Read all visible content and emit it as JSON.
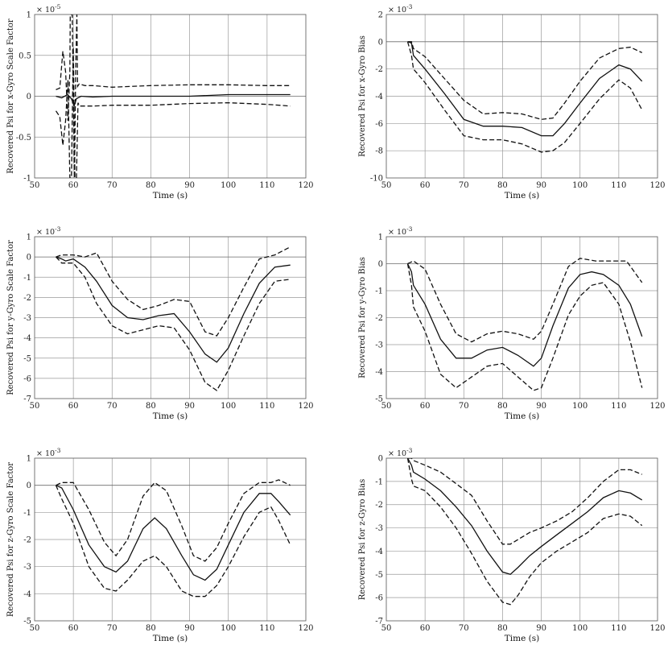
{
  "chart_data": [
    {
      "type": "line",
      "ylabel": "Recovered Psi for x-Gyro Scale Factor",
      "xlabel": "Time (s)",
      "multiplier": "× 10",
      "multiplier_exp": "-5",
      "xlim": [
        50,
        120
      ],
      "ylim": [
        -1,
        1
      ],
      "xticks": [
        "50",
        "60",
        "70",
        "80",
        "90",
        "100",
        "110",
        "120"
      ],
      "yticks": [
        "-1",
        "-0.5",
        "0",
        "0.5",
        "1"
      ],
      "ytick_values": [
        -1,
        -0.5,
        0,
        0.5,
        1
      ],
      "grid": true,
      "series": [
        {
          "style": "solid",
          "x": [
            55.5,
            57,
            58.5,
            59.5,
            60.2,
            60.8,
            62,
            65,
            70,
            80,
            90,
            100,
            110,
            116
          ],
          "y": [
            0.0,
            -0.02,
            0.02,
            -0.03,
            -0.12,
            -0.03,
            0.0,
            -0.01,
            0.0,
            0.0,
            0.0,
            0.02,
            0.02,
            0.02
          ]
        },
        {
          "style": "dashed",
          "x": [
            55.5,
            56.5,
            57.3,
            58,
            58.6,
            59.1,
            59.2,
            59.7,
            60.3,
            60.6,
            60.9,
            61.1,
            61.5,
            63,
            65,
            70,
            80,
            90,
            100,
            110,
            116
          ],
          "y": [
            0.08,
            0.1,
            0.55,
            0.3,
            -0.3,
            0.3,
            1.0,
            1.0,
            -1.0,
            0.3,
            1.0,
            0.12,
            0.15,
            0.13,
            0.13,
            0.11,
            0.13,
            0.14,
            0.14,
            0.13,
            0.13
          ]
        },
        {
          "style": "dashed",
          "x": [
            55.5,
            56.5,
            57.3,
            58,
            58.6,
            59.1,
            59.5,
            60,
            60.4,
            60.8,
            61.2,
            61.6,
            63,
            65,
            70,
            80,
            90,
            100,
            110,
            116
          ],
          "y": [
            -0.18,
            -0.25,
            -0.6,
            -0.3,
            0.2,
            -1.0,
            -1.0,
            0.6,
            -1.0,
            -1.0,
            -0.08,
            -0.12,
            -0.12,
            -0.12,
            -0.11,
            -0.11,
            -0.09,
            -0.08,
            -0.1,
            -0.12
          ]
        }
      ]
    },
    {
      "type": "line",
      "ylabel": "Recovered Psi for x-Gyro Bias",
      "xlabel": "Time (s)",
      "multiplier": "× 10",
      "multiplier_exp": "-3",
      "xlim": [
        50,
        120
      ],
      "ylim": [
        -10,
        2
      ],
      "xticks": [
        "50",
        "60",
        "70",
        "80",
        "90",
        "100",
        "110",
        "120"
      ],
      "yticks": [
        "-10",
        "-8",
        "-6",
        "-4",
        "-2",
        "0",
        "2"
      ],
      "ytick_values": [
        -10,
        -8,
        -6,
        -4,
        -2,
        0,
        2
      ],
      "grid": true,
      "series": [
        {
          "style": "solid",
          "x": [
            55.5,
            56.5,
            57,
            60,
            65,
            70,
            75,
            80,
            85,
            90,
            93,
            96,
            100,
            105,
            110,
            113,
            116
          ],
          "y": [
            0.0,
            -0.1,
            -1.0,
            -2.0,
            -3.8,
            -5.7,
            -6.2,
            -6.2,
            -6.3,
            -6.9,
            -6.9,
            -6.0,
            -4.5,
            -2.7,
            -1.7,
            -2.0,
            -2.9
          ]
        },
        {
          "style": "dashed",
          "x": [
            55.5,
            56.5,
            57,
            60,
            65,
            70,
            75,
            80,
            85,
            90,
            93,
            96,
            100,
            105,
            110,
            113,
            116
          ],
          "y": [
            0.0,
            0.0,
            -0.5,
            -1.1,
            -2.7,
            -4.3,
            -5.3,
            -5.2,
            -5.3,
            -5.7,
            -5.6,
            -4.5,
            -2.9,
            -1.2,
            -0.5,
            -0.4,
            -0.8
          ]
        },
        {
          "style": "dashed",
          "x": [
            55.5,
            56.5,
            57,
            60,
            65,
            70,
            75,
            80,
            85,
            90,
            93,
            96,
            100,
            105,
            110,
            113,
            116
          ],
          "y": [
            0.0,
            -1.0,
            -2.0,
            -3.0,
            -5.0,
            -6.9,
            -7.2,
            -7.2,
            -7.5,
            -8.1,
            -8.0,
            -7.4,
            -6.0,
            -4.2,
            -2.8,
            -3.4,
            -5.0
          ]
        }
      ]
    },
    {
      "type": "line",
      "ylabel": "Recovered Psi for y-Gyro Scale Factor",
      "xlabel": "Time (s)",
      "multiplier": "× 10",
      "multiplier_exp": "-3",
      "xlim": [
        50,
        120
      ],
      "ylim": [
        -7,
        1
      ],
      "xticks": [
        "50",
        "60",
        "70",
        "80",
        "90",
        "100",
        "110",
        "120"
      ],
      "yticks": [
        "-7",
        "-6",
        "-5",
        "-4",
        "-3",
        "-2",
        "-1",
        "0",
        "1"
      ],
      "ytick_values": [
        -7,
        -6,
        -5,
        -4,
        -3,
        -2,
        -1,
        0,
        1
      ],
      "grid": true,
      "series": [
        {
          "style": "solid",
          "x": [
            55.5,
            57,
            58,
            60,
            63,
            66,
            70,
            74,
            78,
            82,
            86,
            90,
            94,
            97,
            100,
            104,
            108,
            112,
            116
          ],
          "y": [
            0.0,
            -0.1,
            -0.2,
            -0.1,
            -0.5,
            -1.2,
            -2.4,
            -3.0,
            -3.1,
            -2.9,
            -2.8,
            -3.7,
            -4.8,
            -5.2,
            -4.5,
            -2.8,
            -1.3,
            -0.5,
            -0.4
          ]
        },
        {
          "style": "dashed",
          "x": [
            55.5,
            57,
            60,
            63,
            66,
            70,
            74,
            78,
            82,
            86,
            90,
            94,
            97,
            100,
            104,
            108,
            112,
            116
          ],
          "y": [
            0.0,
            0.1,
            0.1,
            0.0,
            0.2,
            -1.2,
            -2.1,
            -2.6,
            -2.4,
            -2.1,
            -2.2,
            -3.7,
            -3.9,
            -3.0,
            -1.5,
            -0.1,
            0.1,
            0.5
          ]
        },
        {
          "style": "dashed",
          "x": [
            55.5,
            57,
            60,
            63,
            66,
            70,
            74,
            78,
            82,
            86,
            90,
            94,
            97,
            100,
            104,
            108,
            112,
            116
          ],
          "y": [
            0.0,
            -0.3,
            -0.3,
            -1.0,
            -2.3,
            -3.4,
            -3.8,
            -3.6,
            -3.4,
            -3.5,
            -4.6,
            -6.2,
            -6.6,
            -5.6,
            -3.9,
            -2.3,
            -1.2,
            -1.1
          ]
        }
      ]
    },
    {
      "type": "line",
      "ylabel": "Recovered Psi for y-Gyro Bias",
      "xlabel": "Time (s)",
      "multiplier": "× 10",
      "multiplier_exp": "-3",
      "xlim": [
        50,
        120
      ],
      "ylim": [
        -5,
        1
      ],
      "xticks": [
        "50",
        "60",
        "70",
        "80",
        "90",
        "100",
        "110",
        "120"
      ],
      "yticks": [
        "-5",
        "-4",
        "-3",
        "-2",
        "-1",
        "0",
        "1"
      ],
      "ytick_values": [
        -5,
        -4,
        -3,
        -2,
        -1,
        0,
        1
      ],
      "grid": true,
      "series": [
        {
          "style": "solid",
          "x": [
            55.5,
            56.5,
            57,
            60,
            64,
            68,
            72,
            76,
            80,
            84,
            88,
            90,
            93,
            97,
            100,
            103,
            106,
            110,
            113,
            116
          ],
          "y": [
            0.0,
            -0.3,
            -0.8,
            -1.5,
            -2.8,
            -3.5,
            -3.5,
            -3.2,
            -3.1,
            -3.4,
            -3.8,
            -3.5,
            -2.3,
            -0.9,
            -0.4,
            -0.3,
            -0.4,
            -0.8,
            -1.5,
            -2.7
          ]
        },
        {
          "style": "dashed",
          "x": [
            55.5,
            57,
            60,
            64,
            68,
            72,
            76,
            80,
            84,
            88,
            90,
            93,
            97,
            100,
            104,
            108,
            112,
            116
          ],
          "y": [
            0.0,
            0.1,
            -0.2,
            -1.5,
            -2.6,
            -2.9,
            -2.6,
            -2.5,
            -2.6,
            -2.8,
            -2.5,
            -1.5,
            -0.1,
            0.2,
            0.1,
            0.1,
            0.1,
            -0.7
          ]
        },
        {
          "style": "dashed",
          "x": [
            55.5,
            56.5,
            57,
            60,
            64,
            68,
            72,
            76,
            80,
            84,
            88,
            90,
            93,
            97,
            100,
            103,
            106,
            110,
            113,
            116
          ],
          "y": [
            0.0,
            -0.8,
            -1.6,
            -2.5,
            -4.1,
            -4.6,
            -4.2,
            -3.8,
            -3.7,
            -4.2,
            -4.7,
            -4.6,
            -3.5,
            -1.9,
            -1.2,
            -0.8,
            -0.7,
            -1.5,
            -2.9,
            -4.6
          ]
        }
      ]
    },
    {
      "type": "line",
      "ylabel": "Recovered Psi for z-Gyro Scale Factor",
      "xlabel": "Time (s)",
      "multiplier": "× 10",
      "multiplier_exp": "-3",
      "xlim": [
        50,
        120
      ],
      "ylim": [
        -5,
        1
      ],
      "xticks": [
        "50",
        "60",
        "70",
        "80",
        "90",
        "100",
        "110",
        "120"
      ],
      "yticks": [
        "-5",
        "-4",
        "-3",
        "-2",
        "-1",
        "0",
        "1"
      ],
      "ytick_values": [
        -5,
        -4,
        -3,
        -2,
        -1,
        0,
        1
      ],
      "grid": true,
      "series": [
        {
          "style": "solid",
          "x": [
            55.5,
            57,
            60,
            64,
            68,
            71,
            74,
            78,
            81,
            84,
            88,
            91,
            94,
            97,
            100,
            104,
            108,
            111,
            113,
            116
          ],
          "y": [
            0.0,
            -0.1,
            -0.9,
            -2.2,
            -3.0,
            -3.2,
            -2.8,
            -1.6,
            -1.2,
            -1.6,
            -2.6,
            -3.3,
            -3.5,
            -3.1,
            -2.2,
            -1.0,
            -0.3,
            -0.3,
            -0.6,
            -1.1
          ]
        },
        {
          "style": "dashed",
          "x": [
            55.5,
            57,
            60,
            64,
            68,
            71,
            74,
            78,
            81,
            84,
            88,
            91,
            94,
            97,
            100,
            104,
            108,
            111,
            113,
            116
          ],
          "y": [
            0.0,
            0.1,
            0.1,
            -0.9,
            -2.1,
            -2.6,
            -2.0,
            -0.4,
            0.1,
            -0.2,
            -1.5,
            -2.6,
            -2.8,
            -2.3,
            -1.4,
            -0.3,
            0.1,
            0.1,
            0.2,
            0.0
          ]
        },
        {
          "style": "dashed",
          "x": [
            55.5,
            57,
            60,
            64,
            68,
            71,
            74,
            78,
            81,
            84,
            88,
            91,
            94,
            97,
            100,
            104,
            108,
            111,
            113,
            116
          ],
          "y": [
            0.0,
            -0.5,
            -1.4,
            -3.0,
            -3.8,
            -3.9,
            -3.5,
            -2.8,
            -2.6,
            -3.0,
            -3.9,
            -4.1,
            -4.1,
            -3.7,
            -3.0,
            -1.9,
            -1.0,
            -0.8,
            -1.3,
            -2.2
          ]
        }
      ]
    },
    {
      "type": "line",
      "ylabel": "Recovered Psi for z-Gyro Bias",
      "xlabel": "Time (s)",
      "multiplier": "× 10",
      "multiplier_exp": "-3",
      "xlim": [
        50,
        120
      ],
      "ylim": [
        -7,
        0
      ],
      "xticks": [
        "50",
        "60",
        "70",
        "80",
        "90",
        "100",
        "110",
        "120"
      ],
      "yticks": [
        "-7",
        "-6",
        "-5",
        "-4",
        "-3",
        "-2",
        "-1",
        "0"
      ],
      "ytick_values": [
        -7,
        -6,
        -5,
        -4,
        -3,
        -2,
        -1,
        0
      ],
      "grid": true,
      "series": [
        {
          "style": "solid",
          "x": [
            55.5,
            56.5,
            57,
            60,
            64,
            68,
            72,
            76,
            80,
            82,
            84,
            87,
            90,
            94,
            98,
            102,
            106,
            110,
            113,
            116
          ],
          "y": [
            0.0,
            -0.3,
            -0.6,
            -0.9,
            -1.4,
            -2.1,
            -2.9,
            -4.0,
            -4.9,
            -5.0,
            -4.7,
            -4.2,
            -3.8,
            -3.3,
            -2.8,
            -2.3,
            -1.7,
            -1.4,
            -1.5,
            -1.8
          ]
        },
        {
          "style": "dashed",
          "x": [
            55.5,
            56.5,
            57,
            60,
            64,
            68,
            72,
            76,
            80,
            82,
            84,
            87,
            90,
            94,
            98,
            102,
            106,
            110,
            113,
            116
          ],
          "y": [
            0.0,
            0.0,
            -0.1,
            -0.3,
            -0.6,
            -1.1,
            -1.6,
            -2.7,
            -3.7,
            -3.7,
            -3.5,
            -3.2,
            -3.0,
            -2.7,
            -2.3,
            -1.7,
            -1.0,
            -0.5,
            -0.5,
            -0.7
          ]
        },
        {
          "style": "dashed",
          "x": [
            55.5,
            56.5,
            57,
            60,
            64,
            68,
            72,
            76,
            80,
            82,
            84,
            87,
            90,
            94,
            98,
            102,
            106,
            110,
            113,
            116
          ],
          "y": [
            0.0,
            -0.9,
            -1.2,
            -1.4,
            -2.1,
            -3.0,
            -4.1,
            -5.3,
            -6.2,
            -6.3,
            -5.9,
            -5.1,
            -4.5,
            -4.0,
            -3.6,
            -3.2,
            -2.6,
            -2.4,
            -2.5,
            -2.9
          ]
        }
      ]
    }
  ]
}
